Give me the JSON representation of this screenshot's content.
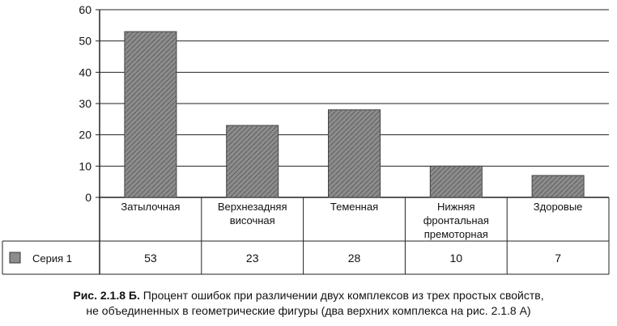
{
  "chart_data": {
    "type": "bar",
    "categories": [
      [
        "Затылочная"
      ],
      [
        "Верхнезадняя",
        "височная"
      ],
      [
        "Теменная"
      ],
      [
        "Нижняя",
        "фронтальная",
        "премоторная"
      ],
      [
        "Здоровые"
      ]
    ],
    "series": [
      {
        "name": "Серия 1",
        "values": [
          53,
          23,
          28,
          10,
          7
        ],
        "color": "#8c8c8c"
      }
    ],
    "yticks": [
      0,
      10,
      20,
      30,
      40,
      50,
      60
    ],
    "ylim": [
      0,
      60
    ],
    "grid": true,
    "legend": "data-table"
  },
  "caption": {
    "label": "Рис. 2.1.8 Б.",
    "line1": "Процент ошибок при различении двух комплексов из трех простых свойств,",
    "line2": "не объединенных в геометрические фигуры (два верхних комплекса на рис. 2.1.8 А)"
  }
}
